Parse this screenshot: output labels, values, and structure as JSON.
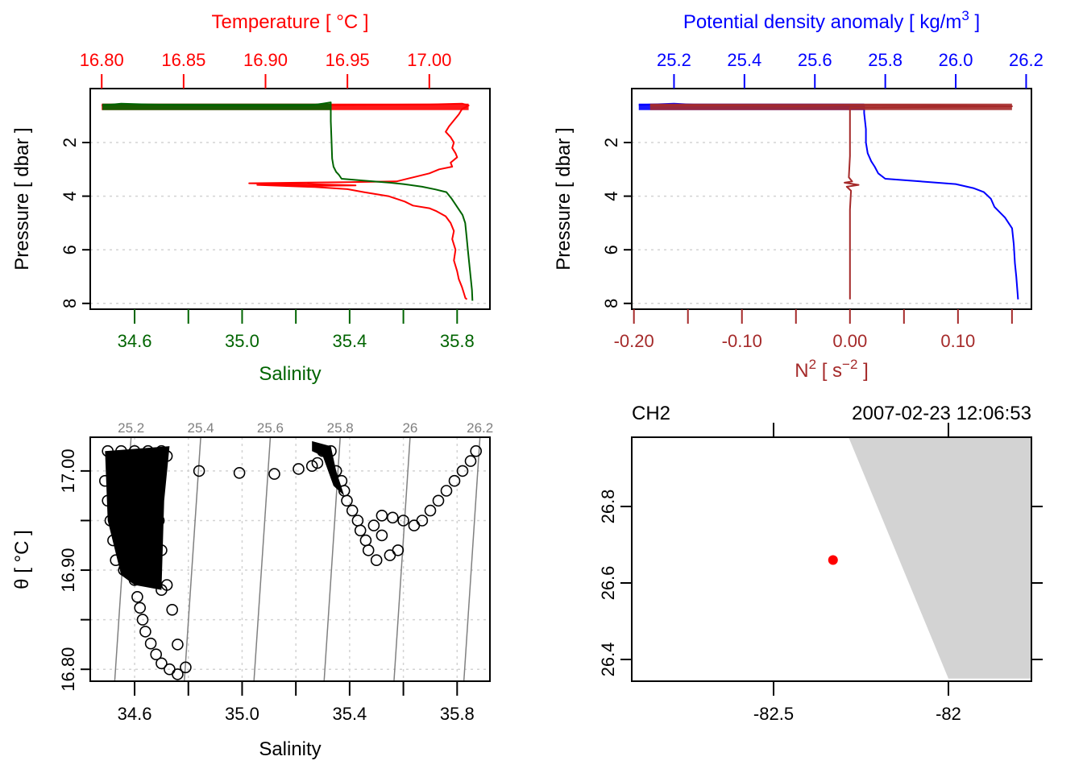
{
  "colors": {
    "temperature": "#ff0000",
    "salinity": "#006400",
    "density": "#0000ff",
    "n2": "#a52a2a",
    "isopycnal": "#808080",
    "grid": "#d3d3d3",
    "land": "#d3d3d3",
    "station": "#ff0000",
    "axis": "#000000"
  },
  "chart_data": [
    {
      "id": "profile-TS",
      "type": "line",
      "ylabel": "Pressure [ dbar ]",
      "y_reversed": true,
      "ylim": [
        0.45,
        8.2
      ],
      "yticks": [
        "2",
        "4",
        "6",
        "8"
      ],
      "grid": "horizontal dotted",
      "top_axis": {
        "label": "Temperature [ °C ]",
        "ticks": [
          "16.80",
          "16.85",
          "16.90",
          "16.95",
          "17.00"
        ],
        "xlim": [
          16.793,
          17.037
        ]
      },
      "bottom_axis": {
        "label": "Salinity",
        "ticks": [
          "34.6",
          "35.0",
          "35.4",
          "35.8"
        ],
        "minor_ticks": [
          34.8,
          35.2,
          35.6
        ],
        "xlim": [
          34.435,
          35.922
        ]
      },
      "series": [
        {
          "name": "Temperature",
          "axis": "top",
          "points": [
            [
              16.8,
              0.62
            ],
            [
              16.85,
              0.6
            ],
            [
              16.9,
              0.64
            ],
            [
              16.95,
              0.6
            ],
            [
              17.0,
              0.58
            ],
            [
              17.02,
              0.55
            ],
            [
              17.024,
              0.62
            ],
            [
              17.02,
              0.75
            ],
            [
              17.018,
              0.95
            ],
            [
              17.016,
              1.1
            ],
            [
              17.012,
              1.4
            ],
            [
              17.01,
              1.6
            ],
            [
              17.013,
              1.8
            ],
            [
              17.015,
              2.0
            ],
            [
              17.014,
              2.2
            ],
            [
              17.016,
              2.4
            ],
            [
              17.017,
              2.55
            ],
            [
              17.013,
              2.75
            ],
            [
              17.014,
              2.9
            ],
            [
              17.006,
              3.0
            ],
            [
              17.0,
              3.15
            ],
            [
              16.99,
              3.3
            ],
            [
              16.98,
              3.45
            ],
            [
              16.95,
              3.48
            ],
            [
              16.92,
              3.5
            ],
            [
              16.89,
              3.52
            ],
            [
              16.925,
              3.55
            ],
            [
              16.955,
              3.6
            ],
            [
              16.93,
              3.62
            ],
            [
              16.895,
              3.58
            ],
            [
              16.93,
              3.66
            ],
            [
              16.95,
              3.74
            ],
            [
              16.96,
              3.85
            ],
            [
              16.975,
              4.0
            ],
            [
              16.985,
              4.2
            ],
            [
              16.99,
              4.35
            ],
            [
              17.0,
              4.45
            ],
            [
              17.004,
              4.55
            ],
            [
              17.01,
              4.75
            ],
            [
              17.013,
              5.0
            ],
            [
              17.015,
              5.3
            ],
            [
              17.014,
              5.6
            ],
            [
              17.016,
              6.0
            ],
            [
              17.015,
              6.4
            ],
            [
              17.017,
              6.8
            ],
            [
              17.018,
              7.1
            ],
            [
              17.02,
              7.4
            ],
            [
              17.021,
              7.6
            ],
            [
              17.022,
              7.8
            ],
            [
              17.023,
              7.85
            ]
          ]
        },
        {
          "name": "Salinity",
          "axis": "bottom",
          "points": [
            [
              34.48,
              0.62
            ],
            [
              34.55,
              0.55
            ],
            [
              34.65,
              0.58
            ],
            [
              34.75,
              0.6
            ],
            [
              34.9,
              0.62
            ],
            [
              35.1,
              0.63
            ],
            [
              35.25,
              0.62
            ],
            [
              35.3,
              0.55
            ],
            [
              35.33,
              0.5
            ],
            [
              35.33,
              0.7
            ],
            [
              35.33,
              1.2
            ],
            [
              35.333,
              2.0
            ],
            [
              35.335,
              2.6
            ],
            [
              35.34,
              2.9
            ],
            [
              35.35,
              3.1
            ],
            [
              35.36,
              3.2
            ],
            [
              35.37,
              3.35
            ],
            [
              35.45,
              3.42
            ],
            [
              35.55,
              3.5
            ],
            [
              35.6,
              3.55
            ],
            [
              35.67,
              3.65
            ],
            [
              35.72,
              3.75
            ],
            [
              35.76,
              3.85
            ],
            [
              35.78,
              4.1
            ],
            [
              35.8,
              4.4
            ],
            [
              35.82,
              4.7
            ],
            [
              35.83,
              5.0
            ],
            [
              35.835,
              5.5
            ],
            [
              35.84,
              6.0
            ],
            [
              35.845,
              6.5
            ],
            [
              35.85,
              7.0
            ],
            [
              35.855,
              7.5
            ],
            [
              35.857,
              7.9
            ]
          ]
        }
      ]
    },
    {
      "id": "profile-density-N2",
      "type": "line",
      "ylabel": "Pressure [ dbar ]",
      "y_reversed": true,
      "ylim": [
        0.45,
        8.2
      ],
      "yticks": [
        "2",
        "4",
        "6",
        "8"
      ],
      "grid": "horizontal dotted",
      "top_axis": {
        "label": "Potential density anomaly [ kg/m³ ]",
        "ticks": [
          "25.2",
          "25.4",
          "25.6",
          "25.8",
          "26.0",
          "26.2"
        ],
        "xlim": [
          25.08,
          26.215
        ]
      },
      "bottom_axis": {
        "label": "N² [ s⁻² ]",
        "ticks": [
          "-0.20",
          "-0.10",
          "0.00",
          "0.10"
        ],
        "minor_ticks": [
          -0.15,
          -0.05,
          0.05,
          0.15
        ],
        "xlim": [
          -0.202,
          0.168
        ]
      },
      "series": [
        {
          "name": "Potential density anomaly",
          "axis": "top",
          "points": [
            [
              25.1,
              0.6
            ],
            [
              25.2,
              0.55
            ],
            [
              25.3,
              0.62
            ],
            [
              25.45,
              0.65
            ],
            [
              25.6,
              0.62
            ],
            [
              25.74,
              0.65
            ],
            [
              25.74,
              0.9
            ],
            [
              25.745,
              1.5
            ],
            [
              25.745,
              2.0
            ],
            [
              25.75,
              2.4
            ],
            [
              25.76,
              2.7
            ],
            [
              25.77,
              2.9
            ],
            [
              25.78,
              3.15
            ],
            [
              25.8,
              3.35
            ],
            [
              25.9,
              3.45
            ],
            [
              26.0,
              3.55
            ],
            [
              26.05,
              3.7
            ],
            [
              26.08,
              3.85
            ],
            [
              26.1,
              4.1
            ],
            [
              26.11,
              4.4
            ],
            [
              26.14,
              4.8
            ],
            [
              26.16,
              5.2
            ],
            [
              26.165,
              5.8
            ],
            [
              26.168,
              6.5
            ],
            [
              26.172,
              7.0
            ],
            [
              26.175,
              7.5
            ],
            [
              26.177,
              7.85
            ]
          ]
        },
        {
          "name": "N2",
          "axis": "bottom",
          "points": [
            [
              -0.185,
              0.62
            ],
            [
              -0.1,
              0.62
            ],
            [
              -0.05,
              0.65
            ],
            [
              0.0,
              0.6
            ],
            [
              0.1,
              0.62
            ],
            [
              0.15,
              0.65
            ],
            [
              0.0,
              0.7
            ],
            [
              0.0,
              1.5
            ],
            [
              0.0,
              2.5
            ],
            [
              -0.001,
              3.3
            ],
            [
              0.002,
              3.45
            ],
            [
              -0.005,
              3.5
            ],
            [
              0.008,
              3.58
            ],
            [
              -0.003,
              3.65
            ],
            [
              0.001,
              3.8
            ],
            [
              0.0,
              4.5
            ],
            [
              0.0,
              6.0
            ],
            [
              0.0,
              7.0
            ],
            [
              0.0,
              7.85
            ]
          ]
        }
      ]
    },
    {
      "id": "TS-diagram",
      "type": "scatter",
      "xlabel": "Salinity",
      "ylabel": "θ [ °C ]",
      "xlim": [
        34.435,
        35.922
      ],
      "ylim": [
        16.788,
        17.034
      ],
      "xticks": [
        "34.6",
        "35.0",
        "35.4",
        "35.8"
      ],
      "minor_xticks": [
        34.8,
        35.2,
        35.6
      ],
      "yticks": [
        "16.80",
        "16.90",
        "17.00"
      ],
      "minor_yticks": [
        16.85,
        16.95
      ],
      "grid": "dotted",
      "isopycnals": {
        "labels": [
          "25.2",
          "25.4",
          "25.6",
          "25.8",
          "26",
          "26.2"
        ],
        "lines": [
          [
            34.587,
            34.526
          ],
          [
            34.846,
            34.785
          ],
          [
            35.105,
            35.044
          ],
          [
            35.365,
            35.305
          ],
          [
            35.625,
            35.565
          ],
          [
            35.885,
            35.825
          ]
        ],
        "note": "each line: salinity at theta=17.034 (top) and at theta=16.788 (bottom)"
      },
      "points": [
        [
          34.5,
          17.02
        ],
        [
          34.55,
          17.02
        ],
        [
          34.6,
          17.02
        ],
        [
          34.65,
          17.02
        ],
        [
          34.7,
          17.02
        ],
        [
          34.72,
          17.015
        ],
        [
          34.49,
          16.99
        ],
        [
          34.5,
          16.97
        ],
        [
          34.51,
          16.95
        ],
        [
          34.52,
          16.93
        ],
        [
          34.53,
          16.91
        ],
        [
          34.56,
          16.9
        ],
        [
          34.6,
          16.89
        ],
        [
          34.65,
          16.89
        ],
        [
          34.68,
          16.9
        ],
        [
          34.7,
          16.92
        ],
        [
          34.69,
          16.95
        ],
        [
          34.68,
          16.98
        ],
        [
          34.7,
          16.88
        ],
        [
          34.72,
          16.885
        ],
        [
          34.61,
          16.873
        ],
        [
          34.62,
          16.862
        ],
        [
          34.63,
          16.85
        ],
        [
          34.64,
          16.838
        ],
        [
          34.66,
          16.826
        ],
        [
          34.68,
          16.815
        ],
        [
          34.7,
          16.806
        ],
        [
          34.73,
          16.8
        ],
        [
          34.76,
          16.795
        ],
        [
          34.79,
          16.802
        ],
        [
          34.76,
          16.825
        ],
        [
          34.74,
          16.86
        ],
        [
          34.84,
          17.0
        ],
        [
          34.99,
          16.998
        ],
        [
          35.12,
          16.997
        ],
        [
          35.21,
          17.002
        ],
        [
          35.26,
          17.005
        ],
        [
          35.28,
          17.008
        ],
        [
          35.3,
          17.02
        ],
        [
          35.33,
          17.02
        ],
        [
          35.35,
          17.0
        ],
        [
          35.37,
          16.99
        ],
        [
          35.38,
          16.98
        ],
        [
          35.39,
          16.97
        ],
        [
          35.41,
          16.96
        ],
        [
          35.43,
          16.95
        ],
        [
          35.44,
          16.94
        ],
        [
          35.46,
          16.93
        ],
        [
          35.47,
          16.92
        ],
        [
          35.5,
          16.91
        ],
        [
          35.55,
          16.915
        ],
        [
          35.58,
          16.92
        ],
        [
          35.52,
          16.935
        ],
        [
          35.49,
          16.945
        ],
        [
          35.52,
          16.955
        ],
        [
          35.56,
          16.953
        ],
        [
          35.6,
          16.95
        ],
        [
          35.64,
          16.945
        ],
        [
          35.67,
          16.95
        ],
        [
          35.7,
          16.96
        ],
        [
          35.73,
          16.97
        ],
        [
          35.76,
          16.98
        ],
        [
          35.79,
          16.99
        ],
        [
          35.82,
          17.0
        ],
        [
          35.85,
          17.01
        ],
        [
          35.87,
          17.02
        ]
      ]
    },
    {
      "id": "station-map",
      "type": "scatter",
      "title_left": "CH2",
      "title_right": "2007-02-23 12:06:53",
      "xlim": [
        -82.93,
        -81.76
      ],
      "ylim": [
        26.35,
        26.98
      ],
      "xticks": [
        "-82.5",
        "-82"
      ],
      "yticks": [
        "26.4",
        "26.6",
        "26.8"
      ],
      "land_polygon": [
        [
          -82.285,
          26.98
        ],
        [
          -82.0,
          26.35
        ],
        [
          -81.76,
          26.35
        ],
        [
          -81.76,
          26.98
        ]
      ],
      "station": {
        "lon": -82.33,
        "lat": 26.66
      }
    }
  ]
}
